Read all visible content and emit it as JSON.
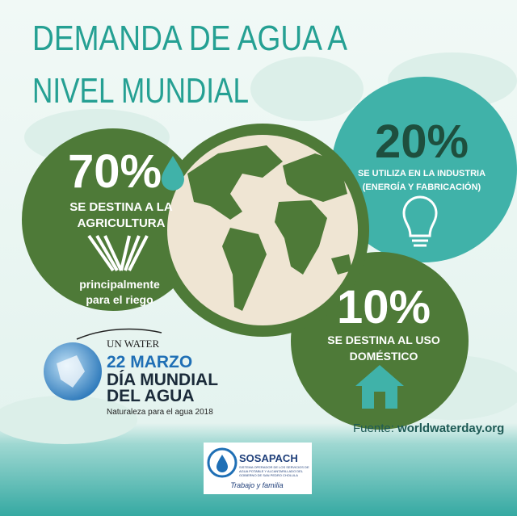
{
  "title": {
    "line1": "DEMANDA DE AGUA  A",
    "line2": "NIVEL MUNDIAL"
  },
  "agriculture": {
    "percent": "70%",
    "label_line1": "SE DESTINA A LA",
    "label_line2": "AGRICULTURA",
    "note_line1": "principalmente",
    "note_line2": "para el riego"
  },
  "industry": {
    "percent": "20%",
    "label_line1": "SE UTILIZA EN LA INDUSTRIA",
    "label_line2": "(ENERGÍA Y FABRICACIÓN)"
  },
  "domestic": {
    "percent": "10%",
    "label_line1": "SE DESTINA AL USO",
    "label_line2": "DOMÉSTICO"
  },
  "event": {
    "org": "UN WATER",
    "date": "22 MARZO",
    "name_line1": "DÍA MUNDIAL",
    "name_line2": "DEL AGUA",
    "theme": "Naturaleza para el agua 2018"
  },
  "source": {
    "label": "Fuente:",
    "url": "worldwaterday.org"
  },
  "sponsor": {
    "name": "SOSAPACH",
    "desc_line1": "SISTEMA OPERADOR DE LOS SERVICIOS DE",
    "desc_line2": "AGUA POTABLE Y ALCANTARILLADO DEL",
    "desc_line3": "GOBIERNO DE SAN PEDRO CHOLULA",
    "motto": "Trabajo y familia"
  }
}
